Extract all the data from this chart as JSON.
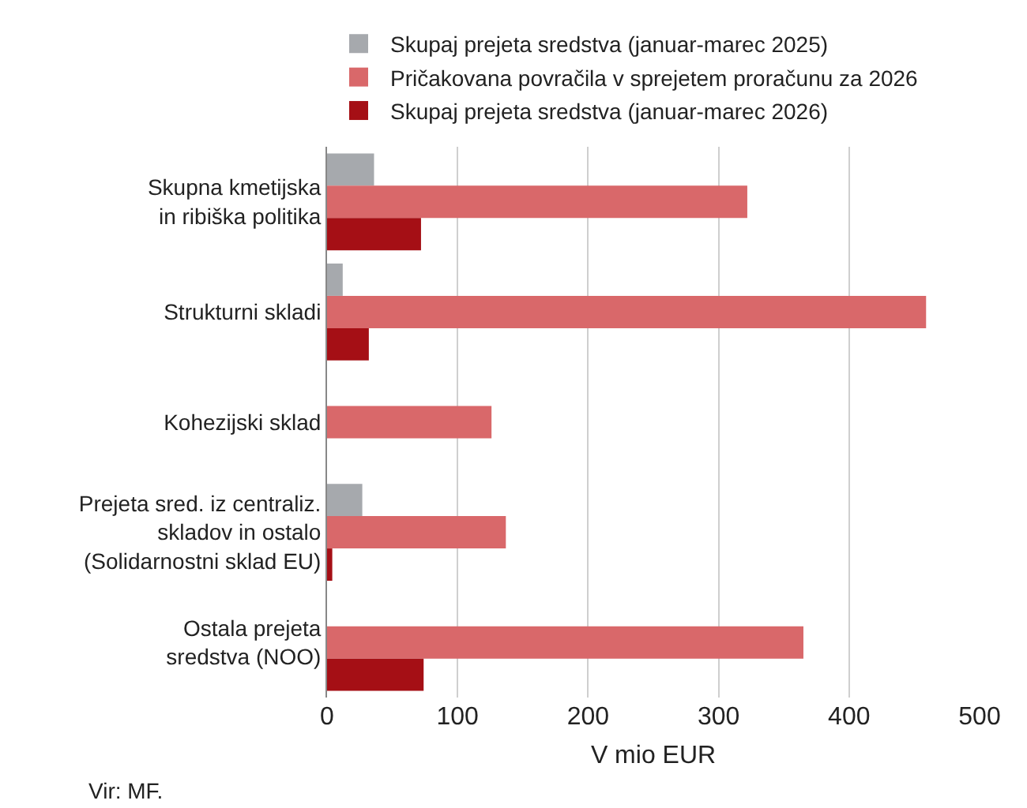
{
  "chart_data": {
    "type": "bar",
    "orientation": "horizontal",
    "categories": [
      "Skupna kmetijska\nin ribiška politika",
      "Strukturni skladi",
      "Kohezijski sklad",
      "Prejeta sred. iz centraliz.\nskladov in ostalo\n(Solidarnostni sklad EU)",
      "Ostala prejeta\nsredstva (NOO)"
    ],
    "series": [
      {
        "name": "Skupaj prejeta sredstva (januar-marec 2025)",
        "color": "#a6a9ad",
        "values": [
          36,
          12,
          null,
          27,
          null
        ]
      },
      {
        "name": "Pričakovana povračila v sprejetem proračunu za 2026",
        "color": "#d9686a",
        "values": [
          322,
          459,
          126,
          137,
          365
        ]
      },
      {
        "name": "Skupaj prejeta sredstva (januar-marec 2026)",
        "color": "#a50f15",
        "values": [
          72,
          32,
          null,
          4,
          74
        ]
      }
    ],
    "xlabel": "V mio EUR",
    "xlim": [
      0,
      500
    ],
    "xticks": [
      0,
      100,
      200,
      300,
      400,
      500
    ],
    "grid": "x",
    "legend": "top",
    "annotations": [
      "Vir: MF."
    ]
  }
}
